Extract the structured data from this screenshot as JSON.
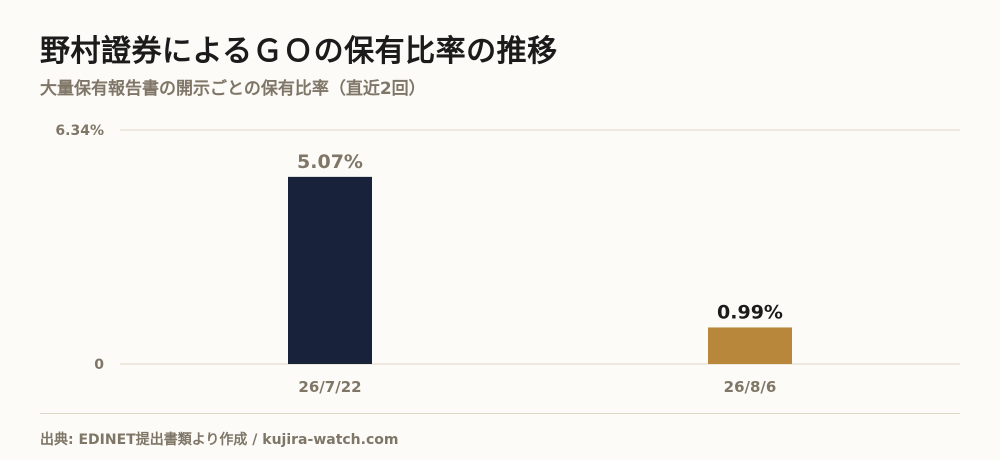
{
  "title": "野村證券によるＧＯの保有比率の推移",
  "subtitle": "大量保有報告書の開示ごとの保有比率（直近2回）",
  "source": "出典: EDINET提出書類より作成 / kujira-watch.com",
  "chart_data": {
    "type": "bar",
    "categories": [
      "26/7/22",
      "26/8/6"
    ],
    "values": [
      5.07,
      0.99
    ],
    "value_labels": [
      "5.07%",
      "0.99%"
    ],
    "colors": [
      "#18223a",
      "#b8873b"
    ],
    "value_label_colors": [
      "#7f7668",
      "#1b1b1b"
    ],
    "ylim": [
      0,
      6.34
    ],
    "y_ticks": [
      0,
      6.34
    ],
    "y_tick_labels": [
      "0",
      "6.34%"
    ],
    "grid": true
  }
}
